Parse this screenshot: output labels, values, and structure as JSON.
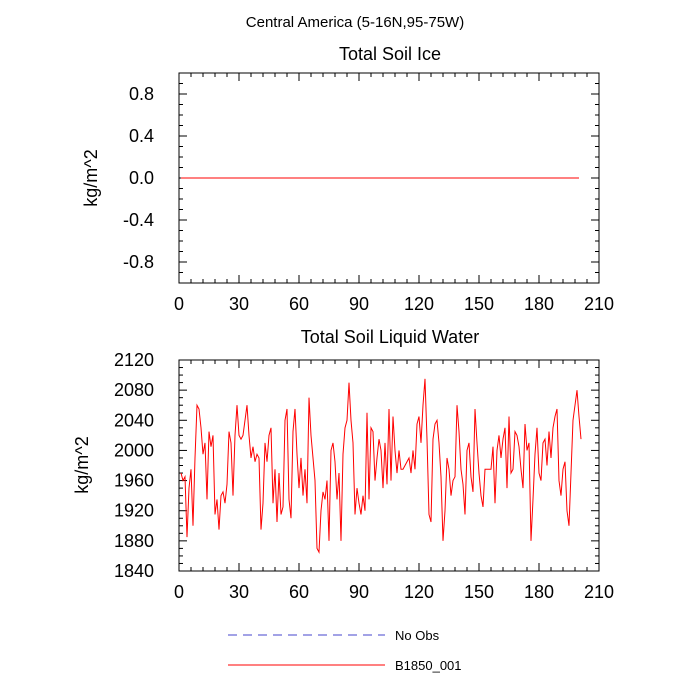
{
  "figure_title": "Central America (5-16N,95-75W)",
  "chart_data": [
    {
      "type": "line",
      "title": "Total Soil Ice",
      "xlabel": "",
      "ylabel": "kg/m^2",
      "xlim": [
        0,
        210
      ],
      "ylim": [
        -1.0,
        1.0
      ],
      "x_ticks": [
        0,
        30,
        60,
        90,
        120,
        150,
        180,
        210
      ],
      "y_ticks": [
        -0.8,
        -0.4,
        0.0,
        0.4,
        0.8
      ],
      "y_tick_labels": [
        "-0.8",
        "-0.4",
        "0.0",
        "0.4",
        "0.8"
      ],
      "series": [
        {
          "name": "B1850_001",
          "color": "#ff0000",
          "x_start": 1,
          "x_end": 200,
          "constant": 0.0
        }
      ]
    },
    {
      "type": "line",
      "title": "Total Soil Liquid Water",
      "xlabel": "",
      "ylabel": "kg/m^2",
      "xlim": [
        0,
        210
      ],
      "ylim": [
        1840,
        2120
      ],
      "x_ticks": [
        0,
        30,
        60,
        90,
        120,
        150,
        180,
        210
      ],
      "y_ticks": [
        1840,
        1880,
        1920,
        1960,
        2000,
        2040,
        2080,
        2120
      ],
      "series": [
        {
          "name": "B1850_001",
          "color": "#ff0000",
          "x_start": 1,
          "values": [
            1970,
            1960,
            1965,
            1885,
            1950,
            1975,
            1900,
            1990,
            2060,
            2055,
            2030,
            1995,
            2010,
            1935,
            2025,
            2005,
            2020,
            1915,
            1935,
            1895,
            1940,
            1945,
            1930,
            1955,
            2025,
            2010,
            1940,
            2020,
            2060,
            2020,
            2015,
            2020,
            2040,
            2060,
            2020,
            1990,
            2005,
            1985,
            1995,
            1990,
            1895,
            1930,
            2010,
            1985,
            2020,
            2030,
            1930,
            1975,
            1905,
            1970,
            1915,
            1925,
            2040,
            2055,
            1935,
            1910,
            2025,
            2055,
            1995,
            1950,
            1990,
            1940,
            1975,
            1930,
            2070,
            2020,
            1990,
            1960,
            1870,
            1865,
            1920,
            1945,
            1935,
            1960,
            1880,
            2000,
            2010,
            1985,
            1935,
            1970,
            1880,
            1995,
            2030,
            2040,
            2090,
            2040,
            2010,
            1915,
            1950,
            1930,
            1915,
            1940,
            1920,
            2050,
            1935,
            2030,
            2025,
            1960,
            1990,
            2015,
            2000,
            1950,
            2010,
            1955,
            2055,
            1960,
            2045,
            2000,
            1970,
            2000,
            1975,
            1975,
            1980,
            1985,
            1990,
            1970,
            2000,
            1975,
            2035,
            2045,
            2010,
            2060,
            2095,
            2015,
            1915,
            1905,
            2015,
            2035,
            2040,
            2010,
            1965,
            1880,
            1920,
            1990,
            1975,
            1940,
            1960,
            1965,
            2060,
            2025,
            1975,
            1955,
            1915,
            2000,
            2010,
            1965,
            1945,
            2055,
            2010,
            1970,
            1940,
            1925,
            1975,
            1975,
            1975,
            1975,
            2005,
            1930,
            2000,
            2020,
            1990,
            2015,
            2030,
            1950,
            2045,
            1970,
            1975,
            2025,
            2020,
            2005,
            1975,
            1950,
            2035,
            2000,
            2010,
            1880,
            1935,
            1995,
            2030,
            1970,
            1960,
            2010,
            2015,
            1980,
            2025,
            1990,
            2030,
            2045,
            2055,
            1960,
            1940,
            1975,
            1985,
            1920,
            1900,
            1970,
            2040,
            2060,
            2080,
            2045,
            2015
          ]
        }
      ]
    }
  ],
  "legend": [
    {
      "label": "No Obs",
      "color": "#4444cc",
      "style": "dashed"
    },
    {
      "label": "B1850_001",
      "color": "#ff0000",
      "style": "solid"
    }
  ]
}
